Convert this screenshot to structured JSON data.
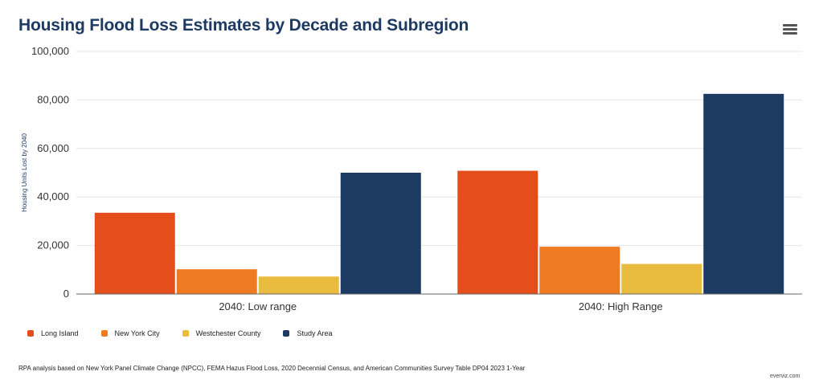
{
  "title": "Housing Flood Loss Estimates by Decade and Subregion",
  "menu_icon": "hamburger-menu-icon",
  "source": "RPA analysis based on New York Panel Climate Change (NPCC), FEMA Hazus Flood Loss, 2020 Decennial Census, and American Communities Survey Table DP04 2023 1-Year",
  "credit": "everviz.com",
  "chart_data": {
    "type": "bar",
    "title": "Housing Flood Loss Estimates by Decade and Subregion",
    "xlabel": "",
    "ylabel": "Housing Units Lost by 2040",
    "ylim": [
      0,
      100000
    ],
    "yticks": [
      0,
      20000,
      40000,
      60000,
      80000,
      100000
    ],
    "ytick_labels": [
      "0",
      "20,000",
      "40,000",
      "60,000",
      "80,000",
      "100,000"
    ],
    "grid": true,
    "legend_position": "bottom-left",
    "categories": [
      "2040: Low range",
      "2040: High Range"
    ],
    "series": [
      {
        "name": "Long Island",
        "color": "#e34e1a",
        "values": [
          33500,
          50800
        ]
      },
      {
        "name": "New York City",
        "color": "#ee7b22",
        "values": [
          10200,
          19500
        ]
      },
      {
        "name": "Westchester County",
        "color": "#e9bb3f",
        "values": [
          7200,
          12400
        ]
      },
      {
        "name": "Study Area",
        "color": "#1d3a63",
        "values": [
          50000,
          82500
        ]
      }
    ]
  }
}
